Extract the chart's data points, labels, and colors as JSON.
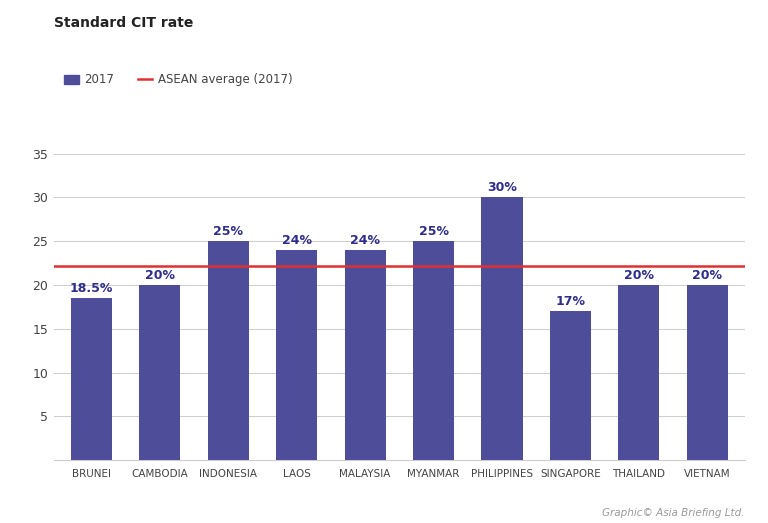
{
  "categories": [
    "BRUNEI",
    "CAMBODIA",
    "INDONESIA",
    "LAOS",
    "MALAYSIA",
    "MYANMAR",
    "PHILIPPINES",
    "SINGAPORE",
    "THAILAND",
    "VIETNAM"
  ],
  "values": [
    18.5,
    20,
    25,
    24,
    24,
    25,
    30,
    17,
    20,
    20
  ],
  "labels": [
    "18.5%",
    "20%",
    "25%",
    "24%",
    "24%",
    "25%",
    "30%",
    "17%",
    "20%",
    "20%"
  ],
  "bar_color": "#4d4d99",
  "asean_average": 22.15,
  "asean_line_color": "#e03030",
  "title": "Standard CIT rate",
  "legend_bar_label": "2017",
  "legend_line_label": "ASEAN average (2017)",
  "ylim": [
    0,
    37
  ],
  "yticks": [
    5,
    10,
    15,
    20,
    25,
    30,
    35
  ],
  "background_color": "#ffffff",
  "grid_color": "#cccccc",
  "label_color": "#2e2e8a",
  "caption": "Graphic© Asia Briefing Ltd.",
  "title_fontsize": 10,
  "label_fontsize": 9,
  "xtick_fontsize": 7.5,
  "ytick_fontsize": 9
}
